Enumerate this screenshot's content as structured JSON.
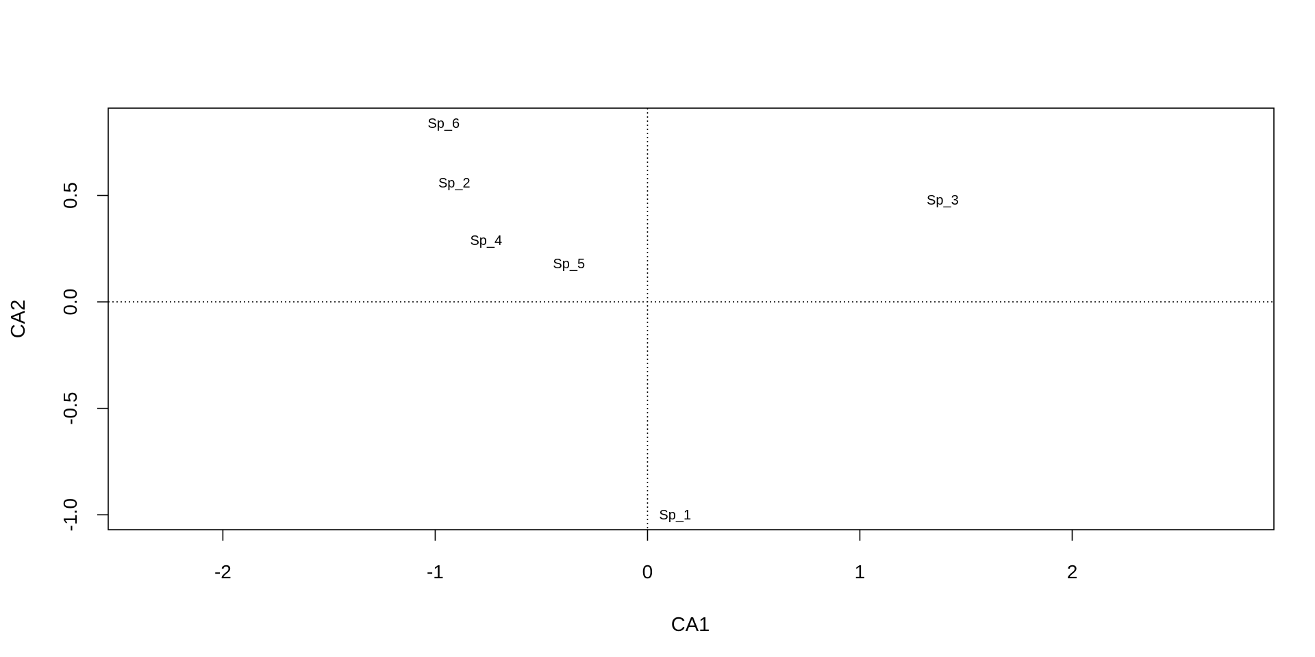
{
  "chart_data": {
    "type": "scatter",
    "title": "",
    "xlabel": "CA1",
    "ylabel": "CA2",
    "xlim": [
      -2.54,
      2.95
    ],
    "ylim": [
      -1.07,
      0.91
    ],
    "x_ticks": [
      -2,
      -1,
      0,
      1,
      2
    ],
    "y_ticks": [
      -1.0,
      -0.5,
      0.0,
      0.5
    ],
    "x_tick_labels": [
      "-2",
      "-1",
      "0",
      "1",
      "2"
    ],
    "y_tick_labels": [
      "-1.0",
      "-0.5",
      "0.0",
      "0.5"
    ],
    "reference_lines": {
      "x": 0,
      "y": 0,
      "style": "dotted"
    },
    "grid": false,
    "legend": "none",
    "points": [
      {
        "label": "Sp_6",
        "x": -0.96,
        "y": 0.84
      },
      {
        "label": "Sp_2",
        "x": -0.91,
        "y": 0.56
      },
      {
        "label": "Sp_4",
        "x": -0.76,
        "y": 0.29
      },
      {
        "label": "Sp_5",
        "x": -0.37,
        "y": 0.18
      },
      {
        "label": "Sp_3",
        "x": 1.39,
        "y": 0.48
      },
      {
        "label": "Sp_1",
        "x": 0.13,
        "y": -1.0
      }
    ]
  }
}
